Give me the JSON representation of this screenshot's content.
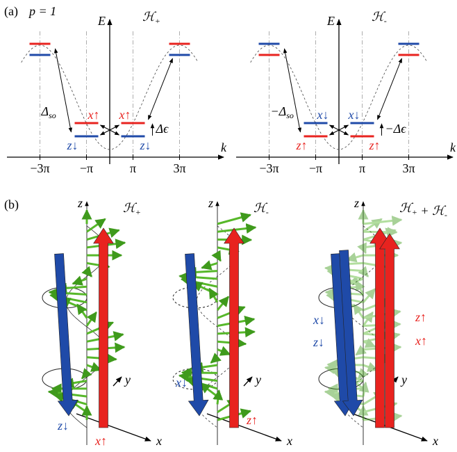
{
  "panel_a": {
    "label": "(a)",
    "param": "p = 1",
    "diagrams": [
      {
        "title": [
          {
            "main": "ℋ",
            "sub": "+"
          }
        ],
        "e_axis": "E",
        "k_axis": "k",
        "ticks": [
          "−3π",
          "−π",
          "π",
          "3π"
        ],
        "gap": [
          {
            "main": "Δ",
            "sub": "so"
          }
        ],
        "split": "Δϵ",
        "upper": [
          "x↑",
          "x↑"
        ],
        "lower": [
          "z↓",
          "z↓"
        ]
      },
      {
        "title": [
          {
            "main": "ℋ",
            "sub": "-"
          }
        ],
        "e_axis": "E",
        "k_axis": "k",
        "ticks": [
          "−3π",
          "−π",
          "π",
          "3π"
        ],
        "gap": [
          {
            "main": "−Δ",
            "sub": "so"
          }
        ],
        "split": "−Δϵ",
        "upper": [
          "x↓",
          "x↓"
        ],
        "lower": [
          "z↑",
          "z↑"
        ]
      }
    ]
  },
  "panel_b": {
    "label": "(b)",
    "views": [
      {
        "title": [
          {
            "main": "ℋ",
            "sub": "+"
          }
        ],
        "z": "z",
        "y": "y",
        "x": "x",
        "blue": [
          "z↓"
        ],
        "red": [
          "x↑"
        ]
      },
      {
        "title": [
          {
            "main": "ℋ",
            "sub": "-"
          }
        ],
        "z": "z",
        "y": "y",
        "x": "x",
        "blue": [
          "x↓"
        ],
        "red": [
          "z↑"
        ]
      },
      {
        "title": [
          {
            "main": "ℋ",
            "sub": "+"
          },
          {
            "main": " + "
          },
          {
            "main": "ℋ",
            "sub": "-"
          }
        ],
        "z": "z",
        "y": "y",
        "x": "x",
        "blue": [
          "x↓",
          "z↓"
        ],
        "red": [
          "z↑",
          "x↑"
        ]
      }
    ]
  }
}
